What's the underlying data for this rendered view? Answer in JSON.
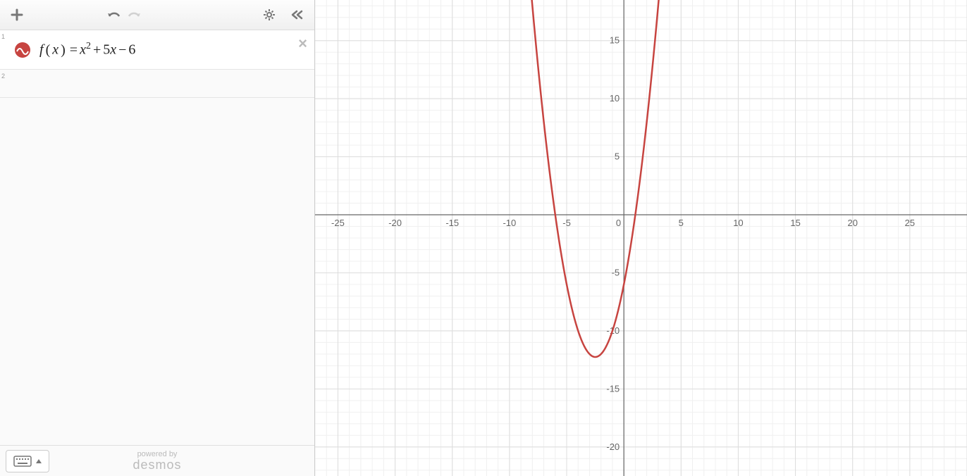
{
  "toolbar": {
    "add_tooltip": "Add Item",
    "undo_tooltip": "Undo",
    "redo_tooltip": "Redo",
    "settings_tooltip": "Settings",
    "collapse_tooltip": "Collapse"
  },
  "expressions": [
    {
      "index": "1",
      "latex_html": "f(x) = x<sup>2</sup> + 5x − 6",
      "color": "#c74440",
      "icon": "wave"
    },
    {
      "index": "2",
      "latex_html": "",
      "empty": true
    }
  ],
  "footer": {
    "powered_by": "powered by",
    "brand": "desmos"
  },
  "chart": {
    "type": "line",
    "curve_color": "#c74440",
    "background_color": "#ffffff",
    "minor_grid_color": "#f0f0f0",
    "major_grid_color": "#dddddd",
    "axis_color": "#666666",
    "label_color": "#666666",
    "label_fontsize": 13,
    "x_range": [
      -27,
      30
    ],
    "y_range": [
      -22.5,
      18.5
    ],
    "x_major_step": 5,
    "y_major_step": 5,
    "x_minor_step": 1,
    "y_minor_step": 1,
    "x_tick_labels": [
      -25,
      -20,
      -15,
      -10,
      -5,
      0,
      5,
      10,
      15,
      20,
      25
    ],
    "y_tick_labels": [
      -20,
      -15,
      -10,
      -5,
      5,
      10,
      15
    ],
    "function": {
      "a": 1,
      "b": 5,
      "c": -6
    }
  }
}
